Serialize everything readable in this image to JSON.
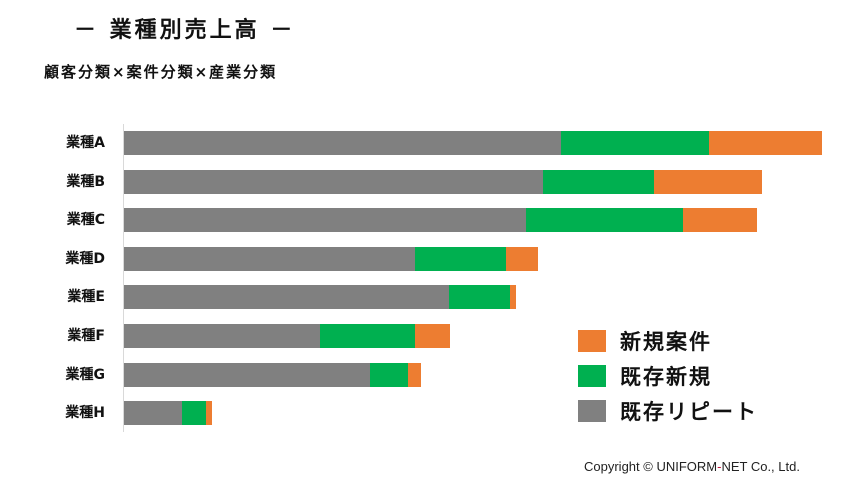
{
  "header": {
    "title": "－ 業種別売上高 －",
    "subtitle": "顧客分類×案件分類×産業分類"
  },
  "colors": {
    "new_project": "#ED7D31",
    "existing_new": "#00B050",
    "existing_repeat": "#808080",
    "axis": "#D9D9D9"
  },
  "legend": {
    "items": [
      {
        "label": "新規案件",
        "color": "#ED7D31"
      },
      {
        "label": "既存新規",
        "color": "#00B050"
      },
      {
        "label": "既存リピート",
        "color": "#808080"
      }
    ]
  },
  "footer": {
    "copyright_prefix": "Copyright © UNIFORM",
    "copyright_hyphen": "-",
    "copyright_suffix": "NET Co., Ltd."
  },
  "chart_data": {
    "type": "bar",
    "orientation": "horizontal",
    "stacked": true,
    "title": "－ 業種別売上高 －",
    "subtitle": "顧客分類×案件分類×産業分類",
    "xlabel": "",
    "ylabel": "",
    "units": "relative (pixel length; no value axis shown)",
    "grid": false,
    "legend_position": "right-bottom inside plot",
    "categories": [
      "業種A",
      "業種B",
      "業種C",
      "業種D",
      "業種E",
      "業種F",
      "業種G",
      "業種H"
    ],
    "series": [
      {
        "name": "既存リピート",
        "color": "#808080",
        "values": [
          437,
          419,
          402,
          291,
          325,
          196,
          246,
          58
        ]
      },
      {
        "name": "既存新規",
        "color": "#00B050",
        "values": [
          148,
          111,
          157,
          91,
          61,
          95,
          38,
          24
        ]
      },
      {
        "name": "新規案件",
        "color": "#ED7D31",
        "values": [
          113,
          108,
          74,
          32,
          6,
          35,
          13,
          6
        ]
      }
    ],
    "xlim": [
      0,
      700
    ]
  }
}
